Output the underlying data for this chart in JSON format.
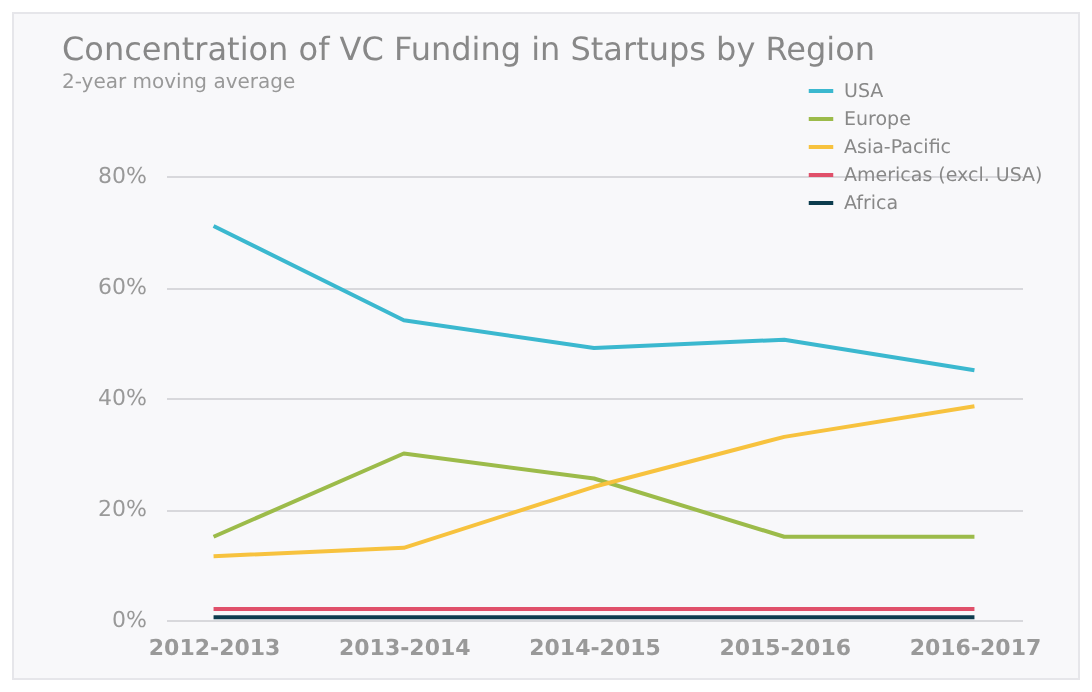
{
  "chart_data": {
    "type": "line",
    "title": "Concentration of VC Funding in Startups by Region",
    "subtitle": "2-year moving average",
    "categories": [
      "2012-2013",
      "2013-2014",
      "2014-2015",
      "2015-2016",
      "2016-2017"
    ],
    "series": [
      {
        "name": "USA",
        "color": "#3bb8cf",
        "values": [
          71,
          54,
          49,
          50.5,
          45
        ]
      },
      {
        "name": "Europe",
        "color": "#9cbb4a",
        "values": [
          15,
          30,
          25.5,
          15,
          15
        ]
      },
      {
        "name": "Asia-Pacific",
        "color": "#f7c23e",
        "values": [
          11.5,
          13,
          24,
          33,
          38.5
        ]
      },
      {
        "name": "Americas (excl. USA)",
        "color": "#e0506a",
        "values": [
          2,
          2,
          2,
          2,
          2
        ]
      },
      {
        "name": "Africa",
        "color": "#0d3c4e",
        "values": [
          0.5,
          0.5,
          0.5,
          0.5,
          0.5
        ]
      }
    ],
    "ylim": [
      0,
      80
    ],
    "yticks": [
      {
        "value": 0,
        "label": "0%"
      },
      {
        "value": 20,
        "label": "20%"
      },
      {
        "value": 40,
        "label": "40%"
      },
      {
        "value": 60,
        "label": "60%"
      },
      {
        "value": 80,
        "label": "80%"
      }
    ],
    "grid": "y",
    "legend": "top right",
    "marker": "none",
    "line_style": "solid"
  }
}
